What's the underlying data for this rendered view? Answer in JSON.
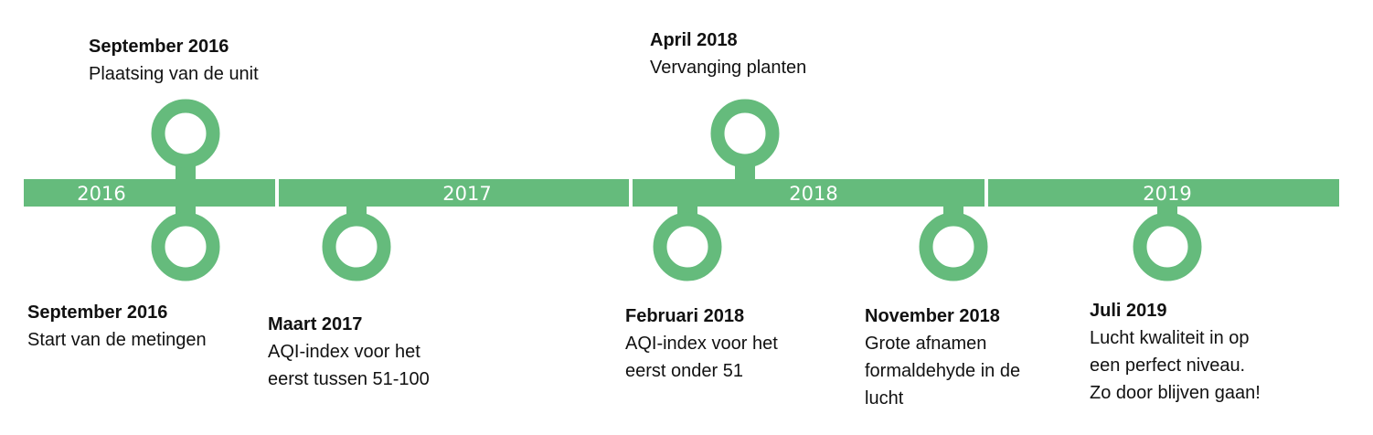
{
  "accent_color": "#65bb7c",
  "years": [
    "2016",
    "2017",
    "2018",
    "2019"
  ],
  "events": [
    {
      "date": "September 2016",
      "lines": [
        "Plaatsing van de unit"
      ],
      "side": "above"
    },
    {
      "date": "September 2016",
      "lines": [
        "Start van de metingen"
      ],
      "side": "below"
    },
    {
      "date": "Maart 2017",
      "lines": [
        "AQI-index voor het",
        "eerst tussen 51-100"
      ],
      "side": "below"
    },
    {
      "date": "April 2018",
      "lines": [
        "Vervanging planten"
      ],
      "side": "above"
    },
    {
      "date": "Februari 2018",
      "lines": [
        "AQI-index voor het",
        "eerst onder 51"
      ],
      "side": "below"
    },
    {
      "date": "November 2018",
      "lines": [
        "Grote afnamen",
        "formaldehyde in de",
        "lucht"
      ],
      "side": "below"
    },
    {
      "date": "Juli 2019",
      "lines": [
        "Lucht kwaliteit in op",
        "een perfect niveau.",
        "Zo door blijven gaan!"
      ],
      "side": "below"
    }
  ]
}
